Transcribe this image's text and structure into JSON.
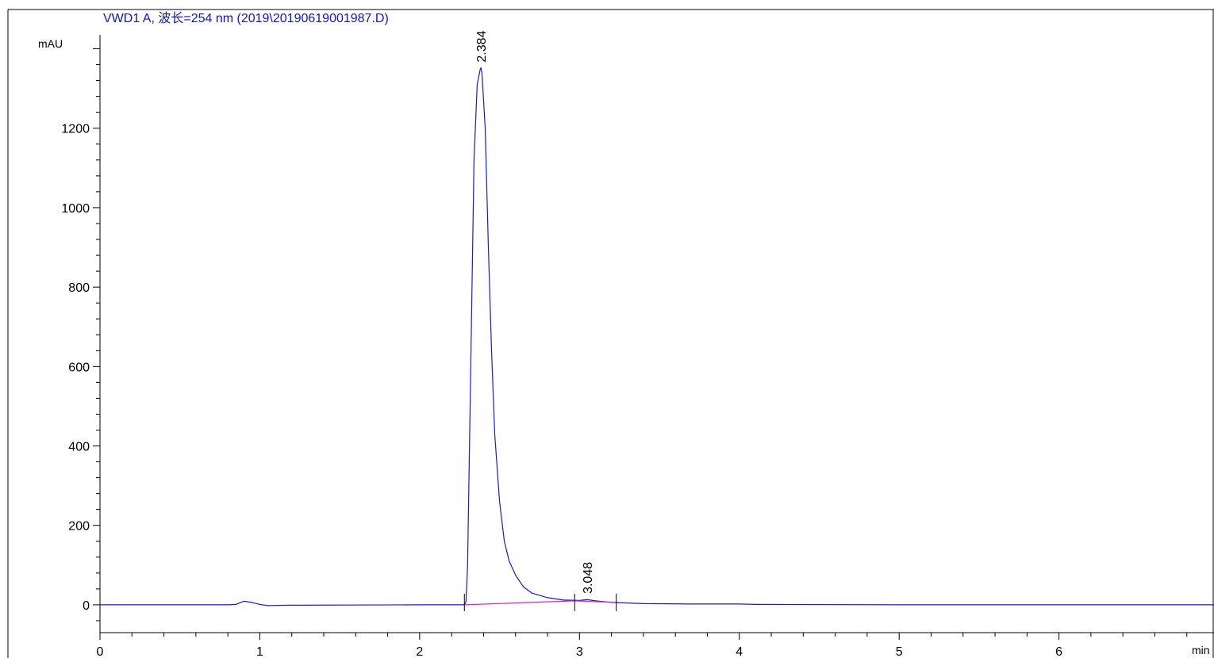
{
  "chart_data": {
    "type": "line",
    "title": "VWD1 A, 波长=254 nm (2019\\20190619001987.D)",
    "ylabel": "mAU",
    "xlabel": "min",
    "xlim": [
      0,
      6.97
    ],
    "ylim": [
      -70,
      1435
    ],
    "x_ticks": [
      0,
      1,
      2,
      3,
      4,
      5,
      6
    ],
    "y_ticks": [
      0,
      200,
      400,
      600,
      800,
      1000,
      1200
    ],
    "peaks": [
      {
        "rt": "2.384",
        "x": 2.384,
        "height": 1350
      },
      {
        "rt": "3.048",
        "x": 3.048,
        "height": 12
      }
    ],
    "series": [
      {
        "color": "#1a1ad8",
        "x": [
          0,
          0.8,
          0.85,
          0.9,
          0.95,
          1.0,
          1.05,
          1.2,
          2.0,
          2.28,
          2.29,
          2.3,
          2.32,
          2.34,
          2.36,
          2.38,
          2.384,
          2.39,
          2.41,
          2.43,
          2.45,
          2.47,
          2.5,
          2.53,
          2.56,
          2.6,
          2.65,
          2.7,
          2.8,
          2.9,
          3.0,
          3.048,
          3.1,
          3.2,
          3.4,
          3.7,
          4.0,
          4.1,
          5.0,
          6.0,
          6.97
        ],
        "y": [
          0,
          0,
          1,
          9,
          6,
          1,
          -2,
          -1,
          0,
          0,
          8,
          100,
          600,
          1120,
          1310,
          1350,
          1352,
          1340,
          1200,
          900,
          640,
          430,
          260,
          160,
          110,
          75,
          45,
          30,
          18,
          12,
          11,
          13,
          10,
          6,
          3,
          2,
          2,
          1,
          0,
          0,
          0
        ]
      },
      {
        "color": "#e020c8",
        "x": [
          2.28,
          2.97,
          3.23
        ],
        "y": [
          0,
          10,
          6
        ]
      }
    ],
    "baseline_markers": [
      2.28,
      2.97,
      3.23
    ]
  }
}
